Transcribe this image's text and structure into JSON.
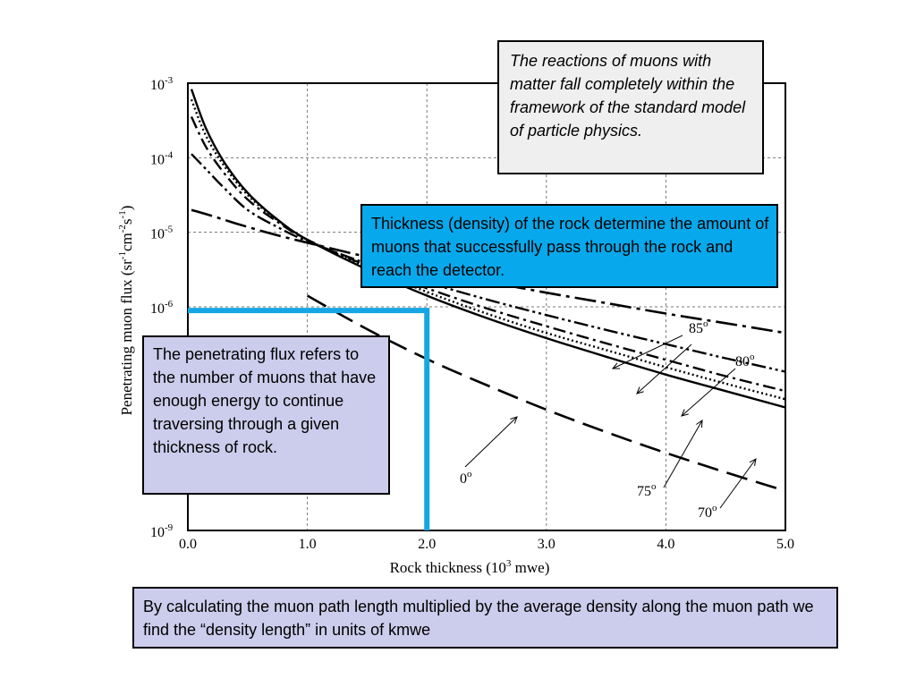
{
  "chart_data": {
    "type": "line",
    "xlabel_main": "Rock thickness (10",
    "xlabel_sup": "3",
    "xlabel_rest": " mwe)",
    "ylabel_parts": [
      "Penetrating muon flux (sr",
      "-1",
      "cm",
      "-2",
      "s",
      "-1",
      ")"
    ],
    "xlim": [
      0,
      5
    ],
    "ylim_log10": [
      -9,
      -3
    ],
    "log_y": true,
    "grid": true,
    "x_ticks": [
      {
        "value": 0,
        "label": "0.0"
      },
      {
        "value": 1,
        "label": "1.0"
      },
      {
        "value": 2,
        "label": "2.0"
      },
      {
        "value": 3,
        "label": "3.0"
      },
      {
        "value": 4,
        "label": "4.0"
      },
      {
        "value": 5,
        "label": "5.0"
      }
    ],
    "y_ticks": [
      {
        "value": -3,
        "base": "10",
        "exp": "-3"
      },
      {
        "value": -4,
        "base": "10",
        "exp": "-4"
      },
      {
        "value": -5,
        "base": "10",
        "exp": "-5"
      },
      {
        "value": -6,
        "base": "10",
        "exp": "-6"
      },
      {
        "value": -9,
        "base": "10",
        "exp": "-9"
      }
    ],
    "series": [
      {
        "name": "0°",
        "style": "solid",
        "x": [
          0.03,
          0.15,
          0.3,
          0.5,
          0.75,
          1.0,
          1.5,
          2.0,
          2.5,
          3.0,
          3.5,
          4.0,
          4.5,
          5.0
        ],
        "log10_y": [
          -3.08,
          -3.6,
          -4.05,
          -4.47,
          -4.83,
          -5.1,
          -5.5,
          -5.85,
          -6.15,
          -6.42,
          -6.67,
          -6.91,
          -7.13,
          -7.35
        ]
      },
      {
        "name": "70°",
        "style": "dotted",
        "x": [
          0.03,
          0.15,
          0.3,
          0.5,
          0.75,
          1.0,
          1.5,
          2.0,
          2.5,
          3.0,
          3.5,
          4.0,
          4.5,
          5.0
        ],
        "log10_y": [
          -3.22,
          -3.7,
          -4.1,
          -4.5,
          -4.84,
          -5.1,
          -5.47,
          -5.8,
          -6.09,
          -6.35,
          -6.58,
          -6.81,
          -7.03,
          -7.24
        ]
      },
      {
        "name": "75°",
        "style": "dash-dot",
        "x": [
          0.03,
          0.15,
          0.3,
          0.5,
          0.75,
          1.0,
          1.5,
          2.0,
          2.5,
          3.0,
          3.5,
          4.0,
          4.5,
          5.0
        ],
        "log10_y": [
          -3.45,
          -3.85,
          -4.2,
          -4.56,
          -4.86,
          -5.1,
          -5.45,
          -5.75,
          -6.02,
          -6.26,
          -6.49,
          -6.71,
          -6.93,
          -7.13
        ]
      },
      {
        "name": "80°",
        "style": "dash-double-dot",
        "x": [
          0.03,
          0.15,
          0.3,
          0.5,
          0.75,
          1.0,
          1.5,
          2.0,
          2.5,
          3.0,
          3.5,
          4.0,
          4.5,
          5.0
        ],
        "log10_y": [
          -3.95,
          -4.15,
          -4.4,
          -4.7,
          -4.93,
          -5.12,
          -5.42,
          -5.67,
          -5.9,
          -6.11,
          -6.31,
          -6.5,
          -6.69,
          -6.87
        ]
      },
      {
        "name": "85°",
        "style": "long-dash-dot",
        "x": [
          0.03,
          0.2,
          0.4,
          0.7,
          1.0,
          1.5,
          2.0,
          2.5,
          3.0,
          3.5,
          4.0,
          4.5,
          5.0
        ],
        "log10_y": [
          -4.7,
          -4.78,
          -4.88,
          -5.02,
          -5.14,
          -5.33,
          -5.5,
          -5.66,
          -5.81,
          -5.95,
          -6.09,
          -6.22,
          -6.35
        ]
      },
      {
        "name": "0°",
        "style": "long-dash",
        "x": [
          1.0,
          1.5,
          2.0,
          2.5,
          3.0,
          3.5,
          4.0,
          4.5,
          5.0
        ],
        "log10_y": [
          -5.85,
          -6.3,
          -6.7,
          -7.05,
          -7.38,
          -7.68,
          -7.96,
          -8.22,
          -8.47
        ]
      }
    ],
    "angle_labels": [
      {
        "label": "85",
        "sup": "o"
      },
      {
        "label": "80",
        "sup": "o"
      },
      {
        "label": "75",
        "sup": "o"
      },
      {
        "label": "70",
        "sup": "o"
      },
      {
        "label": "0",
        "sup": "o"
      }
    ],
    "highlight": {
      "x": 2.0,
      "log10_y": -6.05,
      "color": "#16a6e4"
    }
  },
  "boxes": {
    "top": "The reactions of muons with matter fall completely within the framework of the standard model of particle physics.",
    "mid": "Thickness (density) of the rock determine the amount of muons that successfully pass through the rock and reach the detector.",
    "left": "The penetrating flux refers to the number of muons that have enough energy to continue traversing through a given thickness of rock.",
    "bottom": "By calculating the muon path length multiplied by the average density along the muon path we find the “density length” in units of kmwe"
  },
  "colors": {
    "highlight": "#16a6e4",
    "box_mid": "#07a9ec",
    "box_lavender": "#ccccec",
    "box_grey": "#efefef"
  }
}
